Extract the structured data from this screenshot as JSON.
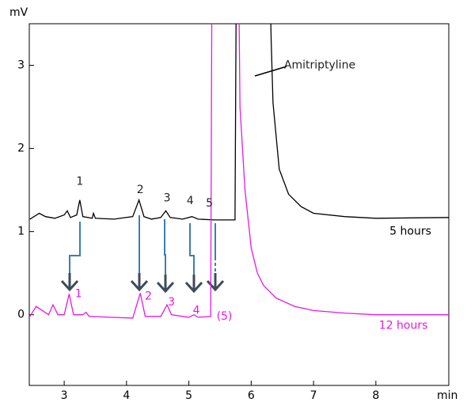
{
  "chart_data": {
    "type": "line",
    "y_label": "mV",
    "x_label": "min",
    "xlim": [
      2.44,
      9.17
    ],
    "ylim": [
      -0.85,
      3.5
    ],
    "xticks": [
      3,
      4,
      5,
      6,
      7,
      8
    ],
    "yticks": [
      0,
      1,
      2,
      3
    ],
    "series": [
      {
        "name": "5 hours",
        "color": "#000000",
        "label_x": 8.22,
        "label_y": 1.0,
        "x": [
          2.45,
          2.6,
          2.7,
          2.85,
          3.0,
          3.05,
          3.1,
          3.2,
          3.25,
          3.3,
          3.45,
          3.47,
          3.5,
          3.8,
          4.1,
          4.2,
          4.28,
          4.4,
          4.55,
          4.63,
          4.7,
          4.9,
          5.05,
          5.15,
          5.4,
          5.74,
          5.76,
          6.3,
          6.32,
          6.35,
          6.45,
          6.6,
          6.8,
          7.0,
          7.5,
          8.0,
          9.17
        ],
        "values": [
          1.15,
          1.22,
          1.18,
          1.16,
          1.2,
          1.25,
          1.17,
          1.2,
          1.38,
          1.18,
          1.16,
          1.22,
          1.16,
          1.15,
          1.18,
          1.38,
          1.18,
          1.15,
          1.17,
          1.25,
          1.17,
          1.15,
          1.18,
          1.15,
          1.14,
          1.14,
          4.0,
          4.0,
          3.3,
          2.55,
          1.75,
          1.45,
          1.3,
          1.22,
          1.18,
          1.16,
          1.17
        ]
      },
      {
        "name": "12 hours",
        "color": "#e619e6",
        "label_x": 8.05,
        "label_y": -0.13,
        "x": [
          2.45,
          2.55,
          2.65,
          2.75,
          2.82,
          2.9,
          3.0,
          3.08,
          3.15,
          3.3,
          3.35,
          3.4,
          4.1,
          4.22,
          4.3,
          4.55,
          4.65,
          4.72,
          5.0,
          5.08,
          5.15,
          5.35,
          5.37,
          5.8,
          5.82,
          5.9,
          6.0,
          6.1,
          6.2,
          6.4,
          6.7,
          7.0,
          7.5,
          8.0,
          9.17
        ],
        "values": [
          -0.02,
          0.1,
          0.05,
          0.0,
          0.12,
          0.0,
          0.0,
          0.25,
          0.0,
          0.0,
          0.03,
          -0.02,
          -0.04,
          0.26,
          -0.02,
          -0.02,
          0.12,
          0.0,
          -0.03,
          0.0,
          -0.03,
          -0.02,
          4.0,
          4.0,
          2.5,
          1.5,
          0.8,
          0.5,
          0.35,
          0.2,
          0.1,
          0.05,
          0.02,
          0.0,
          0.0
        ]
      }
    ],
    "annotations": [
      {
        "text": "1",
        "x": 3.25,
        "y": 1.6,
        "series": 0
      },
      {
        "text": "2",
        "x": 4.22,
        "y": 1.5,
        "series": 0
      },
      {
        "text": "3",
        "x": 4.65,
        "y": 1.4,
        "series": 0
      },
      {
        "text": "4",
        "x": 5.02,
        "y": 1.37,
        "series": 0
      },
      {
        "text": "5",
        "x": 5.33,
        "y": 1.34,
        "series": 0
      },
      {
        "text": "1",
        "x": 3.23,
        "y": 0.25,
        "series": 1
      },
      {
        "text": "2",
        "x": 4.35,
        "y": 0.22,
        "series": 1
      },
      {
        "text": "3",
        "x": 4.72,
        "y": 0.15,
        "series": 1
      },
      {
        "text": "4",
        "x": 5.12,
        "y": 0.05,
        "series": 1
      },
      {
        "text": "(5)",
        "x": 5.57,
        "y": -0.02,
        "series": 1
      },
      {
        "text": "Amitriptyline",
        "x": 7.1,
        "y": 3.0,
        "series": 0
      }
    ]
  }
}
